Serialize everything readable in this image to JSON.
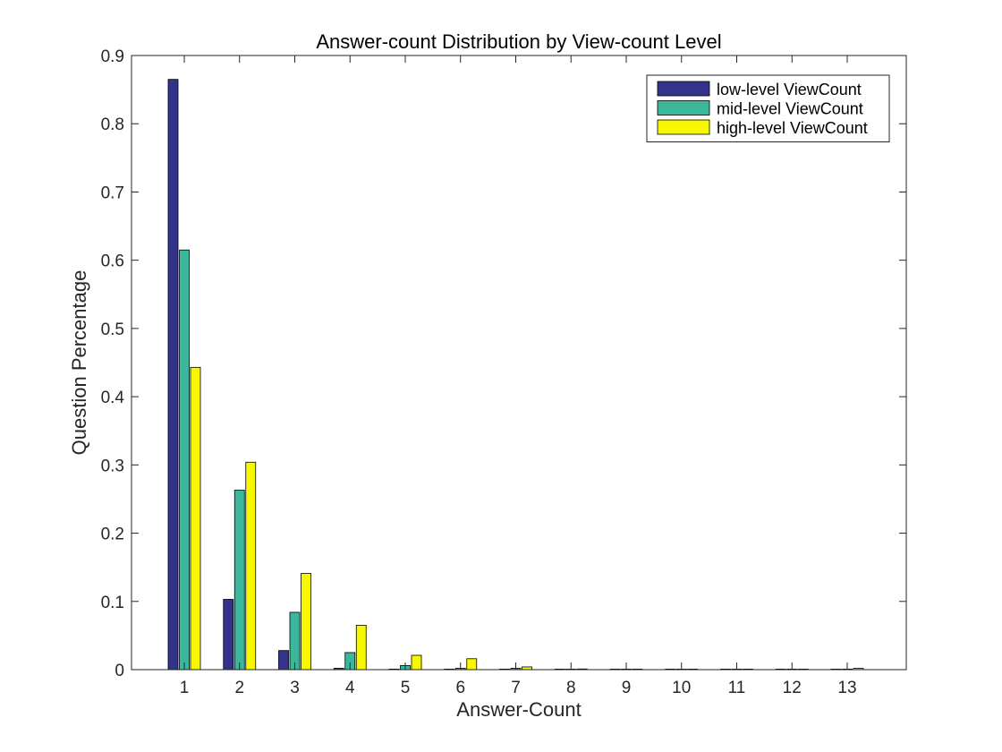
{
  "chart_data": {
    "type": "bar",
    "title": "Answer-count Distribution by View-count Level",
    "xlabel": "Answer-Count",
    "ylabel": "Question Percentage",
    "categories": [
      "1",
      "2",
      "3",
      "4",
      "5",
      "6",
      "7",
      "8",
      "9",
      "10",
      "11",
      "12",
      "13"
    ],
    "ylim": [
      0,
      0.9
    ],
    "yticks": [
      "0",
      "0.1",
      "0.2",
      "0.3",
      "0.4",
      "0.5",
      "0.6",
      "0.7",
      "0.8",
      "0.9"
    ],
    "grid": false,
    "legend_position": "top-right",
    "series": [
      {
        "name": "low-level ViewCount",
        "color": "#33338c",
        "values": [
          0.865,
          0.103,
          0.028,
          0.002,
          0.0005,
          0.0002,
          0.0001,
          0,
          0,
          0,
          0,
          0,
          0
        ]
      },
      {
        "name": "mid-level ViewCount",
        "color": "#3bb89c",
        "values": [
          0.615,
          0.263,
          0.084,
          0.025,
          0.006,
          0.002,
          0.002,
          0.0005,
          0.0003,
          0.0002,
          0.0001,
          0.0001,
          0.0001
        ]
      },
      {
        "name": "high-level ViewCount",
        "color": "#f7f700",
        "values": [
          0.443,
          0.304,
          0.141,
          0.065,
          0.021,
          0.016,
          0.004,
          0.001,
          0.0008,
          0.0006,
          0.0004,
          0.0004,
          0.002
        ]
      }
    ]
  }
}
